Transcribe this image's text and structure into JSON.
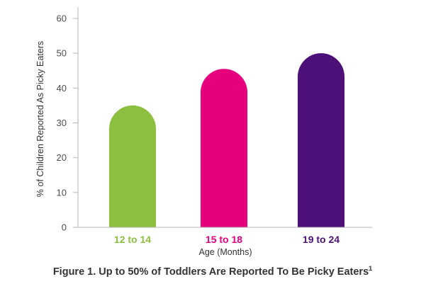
{
  "chart_data": {
    "type": "bar",
    "title": "",
    "categories": [
      "12 to 14",
      "15 to 18",
      "19 to 24"
    ],
    "values": [
      35,
      45.5,
      50
    ],
    "colors": [
      "#8cbf3f",
      "#e6007e",
      "#4d1079"
    ],
    "xlabel": "Age (Months)",
    "ylabel": "% of Children Reported As Picky Eaters",
    "ylim": [
      0,
      60
    ],
    "yticks": [
      0,
      10,
      20,
      30,
      40,
      50,
      60
    ],
    "grid": false,
    "legend": "none",
    "bar_shape": "rounded-top"
  },
  "caption": {
    "text": "Figure 1. Up to 50% of Toddlers Are Reported To Be Picky Eaters",
    "superscript": "1"
  },
  "colors": {
    "axis": "#b5b5b5",
    "text": "#333333"
  }
}
